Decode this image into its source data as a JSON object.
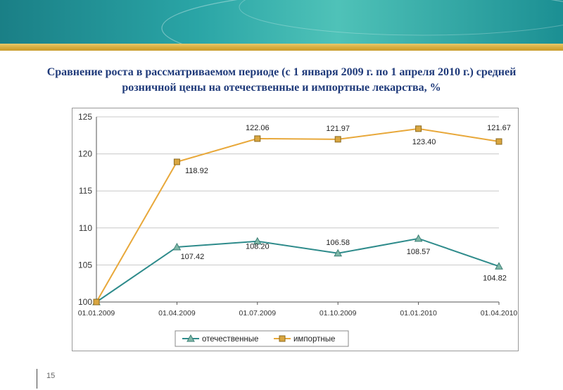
{
  "page": {
    "number": "15"
  },
  "title": {
    "line1": "Сравнение роста в рассматриваемом периоде (с 1 января 2009 г. по 1 апреля 2010 г.) средней",
    "line2": "розничной цены на отечественные и импортные лекарства, %"
  },
  "colors": {
    "domestic": "#2e8b8b",
    "imported": "#e8a83a",
    "title": "#1f3a7a",
    "banner": "#2aa5a6",
    "gold": "#d4a93a"
  },
  "chart_data": {
    "type": "line",
    "categories": [
      "01.01.2009",
      "01.04.2009",
      "01.07.2009",
      "01.10.2009",
      "01.01.2010",
      "01.04.2010"
    ],
    "ylim": [
      100,
      125
    ],
    "yticks": [
      100,
      105,
      110,
      115,
      120,
      125
    ],
    "grid": true,
    "legend": "bottom",
    "series": [
      {
        "name": "отечественные",
        "marker": "triangle",
        "values": [
          100,
          107.42,
          108.2,
          106.58,
          108.57,
          104.82
        ],
        "labels": [
          "",
          "107.42",
          "108.20",
          "106.58",
          "108.57",
          "104.82"
        ]
      },
      {
        "name": "импортные",
        "marker": "square",
        "values": [
          100,
          118.92,
          122.06,
          121.97,
          123.4,
          121.67
        ],
        "labels": [
          "",
          "118.92",
          "122.06",
          "121.97",
          "123.40",
          "121.67"
        ]
      }
    ]
  }
}
